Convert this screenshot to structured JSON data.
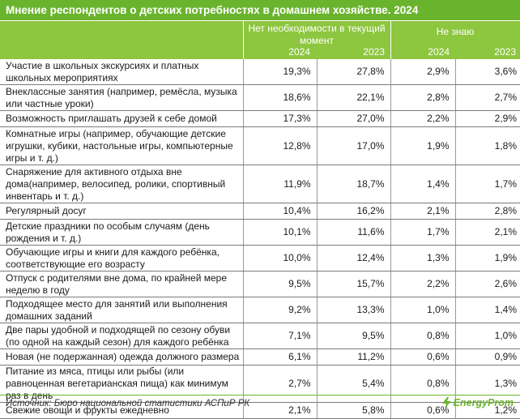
{
  "title": "Мнение респондентов о детских потребностях в домашнем хозяйстве. 2024",
  "header": {
    "group1": "Нет необходимости в текущий момент",
    "group2": "Не знаю",
    "years": [
      "2024",
      "2023",
      "2024",
      "2023"
    ]
  },
  "rows": [
    {
      "label": "Участие в школьных экскурсиях и платных школьных мероприятиях",
      "values": [
        "19,3%",
        "27,8%",
        "2,9%",
        "3,6%"
      ]
    },
    {
      "label": "Внеклассные занятия (например, ремёсла, музыка или частные уроки)",
      "values": [
        "18,6%",
        "22,1%",
        "2,8%",
        "2,7%"
      ]
    },
    {
      "label": "Возможность приглашать друзей к себе домой",
      "values": [
        "17,3%",
        "27,0%",
        "2,2%",
        "2,9%"
      ]
    },
    {
      "label": "Комнатные игры (например, обучающие детские игрушки, кубики, настольные игры, компьютерные игры и т. д.)",
      "values": [
        "12,8%",
        "17,0%",
        "1,9%",
        "1,8%"
      ]
    },
    {
      "label": "Снаряжение для активного отдыха вне дома(например, велосипед, ролики, спортивный инвентарь и т. д.)",
      "values": [
        "11,9%",
        "18,7%",
        "1,4%",
        "1,7%"
      ]
    },
    {
      "label": "Регулярный досуг",
      "values": [
        "10,4%",
        "16,2%",
        "2,1%",
        "2,8%"
      ]
    },
    {
      "label": "Детские праздники по особым случаям (день рождения и т. д.)",
      "values": [
        "10,1%",
        "11,6%",
        "1,7%",
        "2,1%"
      ]
    },
    {
      "label": "Обучающие игры и книги для каждого ребёнка, соответствующие его возрасту",
      "values": [
        "10,0%",
        "12,4%",
        "1,3%",
        "1,9%"
      ]
    },
    {
      "label": "Отпуск с родителями вне дома, по крайней мере неделю в году",
      "values": [
        "9,5%",
        "15,7%",
        "2,2%",
        "2,6%"
      ]
    },
    {
      "label": "Подходящее место для занятий или выполнения домашних заданий",
      "values": [
        "9,2%",
        "13,3%",
        "1,0%",
        "1,4%"
      ]
    },
    {
      "label": "Две пары удобной и подходящей по сезону обуви (по одной на каждый сезон) для каждого ребёнка",
      "values": [
        "7,1%",
        "9,5%",
        "0,8%",
        "1,0%"
      ]
    },
    {
      "label": "Новая (не подержанная) одежда должного размера",
      "values": [
        "6,1%",
        "11,2%",
        "0,6%",
        "0,9%"
      ]
    },
    {
      "label": "Питание из мяса, птицы или рыбы (или равноценная вегетарианская пища) как минимум раз в день",
      "values": [
        "2,7%",
        "5,4%",
        "0,8%",
        "1,3%"
      ]
    },
    {
      "label": "Свежие овощи и фрукты ежедневно",
      "values": [
        "2,1%",
        "5,8%",
        "0,6%",
        "1,2%"
      ]
    }
  ],
  "footer": {
    "source": "Источник: Бюро национальной статистики АСПиР РК",
    "brand": "EnergyProm",
    "brand_color": "#6ab42d"
  }
}
